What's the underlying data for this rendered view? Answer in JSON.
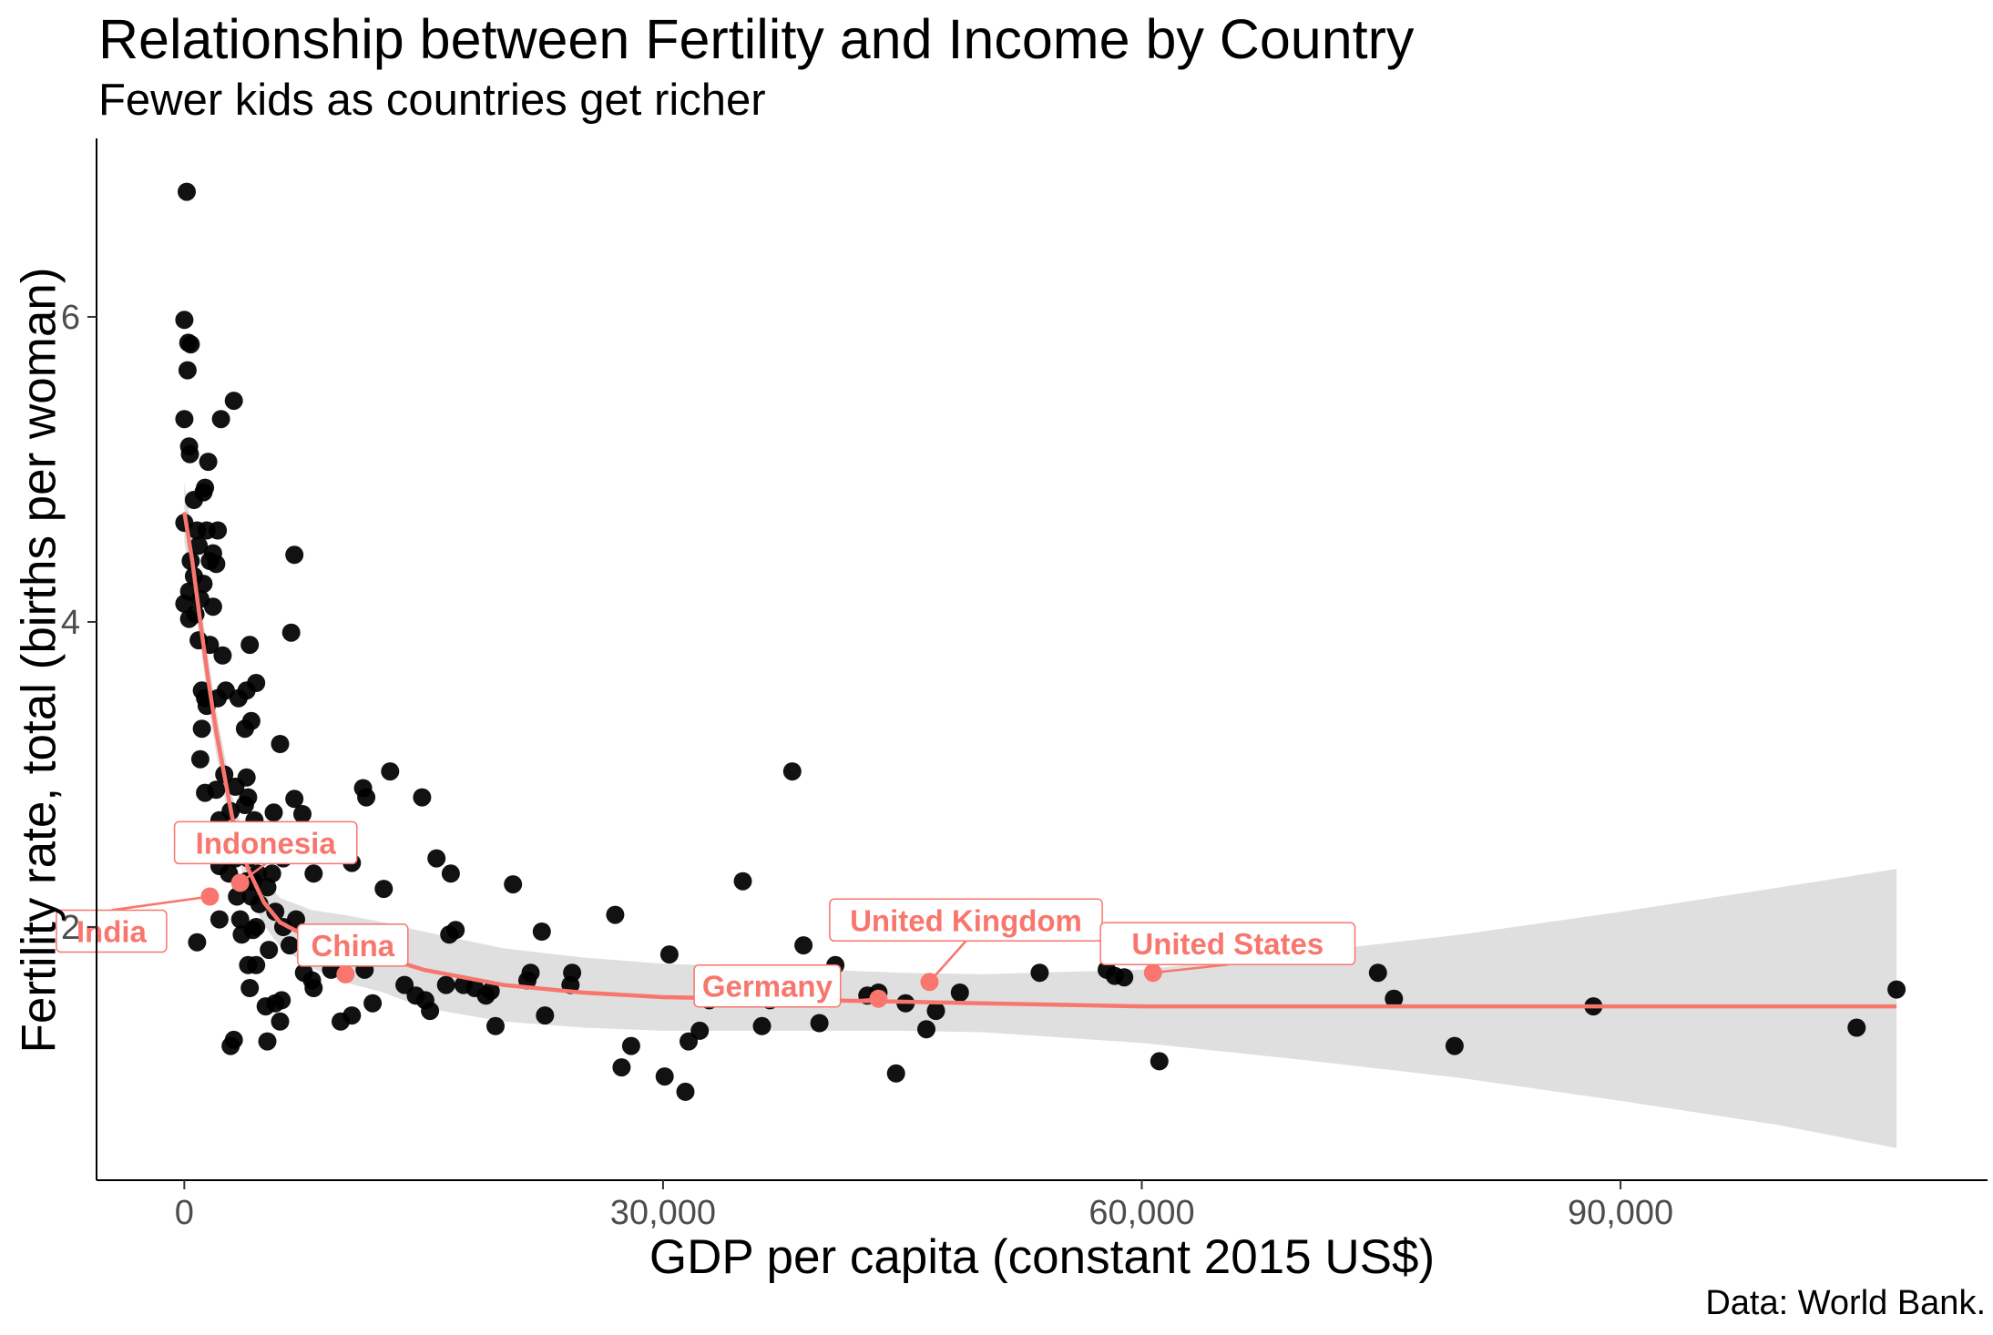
{
  "chart_data": {
    "type": "scatter",
    "title": "Relationship between Fertility and Income by Country",
    "subtitle": "Fewer kids as countries get richer",
    "xlabel": "GDP per capita (constant 2015 US$)",
    "ylabel": "Fertility rate, total (births per woman)",
    "caption": "Data: World Bank.",
    "xlim": [
      -5500,
      113000
    ],
    "ylim": [
      0.34,
      7.17
    ],
    "x_ticks": [
      0,
      30000,
      60000,
      90000
    ],
    "x_tick_labels": [
      "0",
      "30,000",
      "60,000",
      "90,000"
    ],
    "y_ticks": [
      2,
      4,
      6
    ],
    "y_tick_labels": [
      "2",
      "4",
      "6"
    ],
    "grid": false,
    "colors": {
      "points": "#000000",
      "highlight": "#F8766D",
      "ribbon": "#D9D9D9"
    },
    "points": [
      [
        150,
        6.82
      ],
      [
        0,
        5.98
      ],
      [
        250,
        5.83
      ],
      [
        400,
        5.82
      ],
      [
        200,
        5.65
      ],
      [
        0,
        5.33
      ],
      [
        300,
        5.15
      ],
      [
        350,
        5.1
      ],
      [
        1500,
        5.05
      ],
      [
        2300,
        5.33
      ],
      [
        3100,
        5.45
      ],
      [
        1300,
        4.88
      ],
      [
        1200,
        4.85
      ],
      [
        600,
        4.8
      ],
      [
        0,
        4.65
      ],
      [
        800,
        4.6
      ],
      [
        1400,
        4.6
      ],
      [
        2100,
        4.6
      ],
      [
        900,
        4.5
      ],
      [
        1800,
        4.45
      ],
      [
        400,
        4.4
      ],
      [
        1600,
        4.4
      ],
      [
        2000,
        4.38
      ],
      [
        600,
        4.3
      ],
      [
        1200,
        4.25
      ],
      [
        300,
        4.2
      ],
      [
        1000,
        4.15
      ],
      [
        1800,
        4.1
      ],
      [
        0,
        4.12
      ],
      [
        700,
        4.05
      ],
      [
        300,
        4.02
      ],
      [
        6900,
        4.44
      ],
      [
        6700,
        3.93
      ],
      [
        900,
        3.88
      ],
      [
        1600,
        3.85
      ],
      [
        2400,
        3.78
      ],
      [
        4100,
        3.85
      ],
      [
        1100,
        3.55
      ],
      [
        1300,
        3.5
      ],
      [
        1400,
        3.45
      ],
      [
        2100,
        3.5
      ],
      [
        2600,
        3.55
      ],
      [
        3400,
        3.5
      ],
      [
        3900,
        3.55
      ],
      [
        4500,
        3.6
      ],
      [
        4200,
        3.35
      ],
      [
        3800,
        3.3
      ],
      [
        1100,
        3.3
      ],
      [
        6000,
        3.2
      ],
      [
        1000,
        3.1
      ],
      [
        2500,
        3.0
      ],
      [
        3900,
        2.98
      ],
      [
        3200,
        2.92
      ],
      [
        2000,
        2.9
      ],
      [
        1300,
        2.88
      ],
      [
        4000,
        2.85
      ],
      [
        3800,
        2.8
      ],
      [
        2900,
        2.76
      ],
      [
        5600,
        2.75
      ],
      [
        6900,
        2.84
      ],
      [
        7400,
        2.74
      ],
      [
        2200,
        2.7
      ],
      [
        4400,
        2.7
      ],
      [
        3000,
        2.6
      ],
      [
        3700,
        2.6
      ],
      [
        5000,
        2.55
      ],
      [
        2600,
        2.5
      ],
      [
        3200,
        2.45
      ],
      [
        4000,
        2.45
      ],
      [
        6200,
        2.45
      ],
      [
        10500,
        2.42
      ],
      [
        2200,
        2.4
      ],
      [
        2800,
        2.35
      ],
      [
        4600,
        2.35
      ],
      [
        5500,
        2.35
      ],
      [
        8100,
        2.35
      ],
      [
        3900,
        2.3
      ],
      [
        4300,
        2.3
      ],
      [
        5200,
        2.26
      ],
      [
        3300,
        2.2
      ],
      [
        4200,
        2.2
      ],
      [
        4700,
        2.15
      ],
      [
        5700,
        2.1
      ],
      [
        7000,
        2.05
      ],
      [
        3500,
        2.05
      ],
      [
        2200,
        2.05
      ],
      [
        4500,
        2.0
      ],
      [
        6200,
        2.0
      ],
      [
        7700,
        1.95
      ],
      [
        3600,
        1.95
      ],
      [
        4300,
        1.98
      ],
      [
        8000,
        1.9
      ],
      [
        9000,
        1.85
      ],
      [
        6600,
        1.88
      ],
      [
        5300,
        1.85
      ],
      [
        800,
        1.9
      ],
      [
        7800,
        1.8
      ],
      [
        10500,
        1.82
      ],
      [
        4500,
        1.75
      ],
      [
        4000,
        1.75
      ],
      [
        7500,
        1.7
      ],
      [
        9200,
        1.72
      ],
      [
        11300,
        1.72
      ],
      [
        8000,
        1.65
      ],
      [
        8100,
        1.6
      ],
      [
        4100,
        1.6
      ],
      [
        5700,
        1.5
      ],
      [
        6100,
        1.52
      ],
      [
        5100,
        1.48
      ],
      [
        6000,
        1.38
      ],
      [
        5200,
        1.25
      ],
      [
        3100,
        1.26
      ],
      [
        2900,
        1.22
      ],
      [
        9800,
        1.38
      ],
      [
        10500,
        1.42
      ],
      [
        11800,
        1.5
      ],
      [
        11200,
        2.91
      ],
      [
        11400,
        2.85
      ],
      [
        12500,
        2.25
      ],
      [
        12900,
        3.02
      ],
      [
        14900,
        2.85
      ],
      [
        15800,
        2.45
      ],
      [
        16700,
        2.35
      ],
      [
        13800,
        1.62
      ],
      [
        14500,
        1.55
      ],
      [
        15100,
        1.52
      ],
      [
        15400,
        1.45
      ],
      [
        16400,
        1.62
      ],
      [
        16600,
        1.95
      ],
      [
        17000,
        1.98
      ],
      [
        17500,
        1.62
      ],
      [
        18200,
        1.6
      ],
      [
        18900,
        1.55
      ],
      [
        19200,
        1.58
      ],
      [
        19500,
        1.35
      ],
      [
        20600,
        2.28
      ],
      [
        21500,
        1.65
      ],
      [
        21700,
        1.7
      ],
      [
        22400,
        1.97
      ],
      [
        22600,
        1.42
      ],
      [
        24200,
        1.62
      ],
      [
        24300,
        1.7
      ],
      [
        27000,
        2.08
      ],
      [
        27400,
        1.08
      ],
      [
        28000,
        1.22
      ],
      [
        30100,
        1.02
      ],
      [
        30400,
        1.82
      ],
      [
        31400,
        0.92
      ],
      [
        31600,
        1.25
      ],
      [
        32300,
        1.32
      ],
      [
        32900,
        1.52
      ],
      [
        35000,
        2.3
      ],
      [
        36200,
        1.35
      ],
      [
        36700,
        1.52
      ],
      [
        38100,
        3.02
      ],
      [
        38800,
        1.88
      ],
      [
        39000,
        1.62
      ],
      [
        39800,
        1.37
      ],
      [
        40800,
        1.75
      ],
      [
        42800,
        1.55
      ],
      [
        43500,
        1.57
      ],
      [
        44600,
        1.04
      ],
      [
        45200,
        1.5
      ],
      [
        46500,
        1.33
      ],
      [
        47100,
        1.45
      ],
      [
        48600,
        1.57
      ],
      [
        53600,
        1.7
      ],
      [
        57800,
        1.72
      ],
      [
        58300,
        1.68
      ],
      [
        58900,
        1.67
      ],
      [
        61100,
        1.12
      ],
      [
        74800,
        1.7
      ],
      [
        75800,
        1.53
      ],
      [
        79600,
        1.22
      ],
      [
        88300,
        1.48
      ],
      [
        104800,
        1.34
      ],
      [
        107300,
        1.59
      ]
    ],
    "highlighted": [
      {
        "label": "India",
        "x": 1600,
        "y": 2.2
      },
      {
        "label": "Indonesia",
        "x": 3500,
        "y": 2.29
      },
      {
        "label": "China",
        "x": 10100,
        "y": 1.69
      },
      {
        "label": "Germany",
        "x": 43500,
        "y": 1.53
      },
      {
        "label": "United Kingdom",
        "x": 46700,
        "y": 1.64
      },
      {
        "label": "United States",
        "x": 60700,
        "y": 1.7
      }
    ],
    "smooth": {
      "x": [
        0,
        500,
        1000,
        1500,
        2000,
        3000,
        4000,
        5000,
        6000,
        8000,
        10000,
        12500,
        15000,
        20000,
        25000,
        30000,
        35000,
        40000,
        45000,
        50000,
        60000,
        70000,
        80000,
        90000,
        100000,
        107300
      ],
      "y": [
        4.72,
        4.4,
        4.0,
        3.62,
        3.28,
        2.72,
        2.38,
        2.16,
        2.03,
        1.92,
        1.86,
        1.8,
        1.72,
        1.62,
        1.57,
        1.54,
        1.53,
        1.52,
        1.51,
        1.5,
        1.48,
        1.48,
        1.48,
        1.48,
        1.48,
        1.48
      ],
      "lower": [
        4.52,
        4.22,
        3.85,
        3.47,
        3.14,
        2.58,
        2.24,
        2.01,
        1.87,
        1.73,
        1.64,
        1.57,
        1.47,
        1.38,
        1.34,
        1.32,
        1.32,
        1.32,
        1.32,
        1.31,
        1.24,
        1.13,
        1.01,
        0.86,
        0.7,
        0.55
      ],
      "upper": [
        4.92,
        4.58,
        4.15,
        3.77,
        3.42,
        2.86,
        2.52,
        2.31,
        2.19,
        2.11,
        2.08,
        2.03,
        1.97,
        1.86,
        1.8,
        1.76,
        1.74,
        1.72,
        1.7,
        1.69,
        1.72,
        1.83,
        1.95,
        2.1,
        2.26,
        2.38
      ]
    }
  }
}
